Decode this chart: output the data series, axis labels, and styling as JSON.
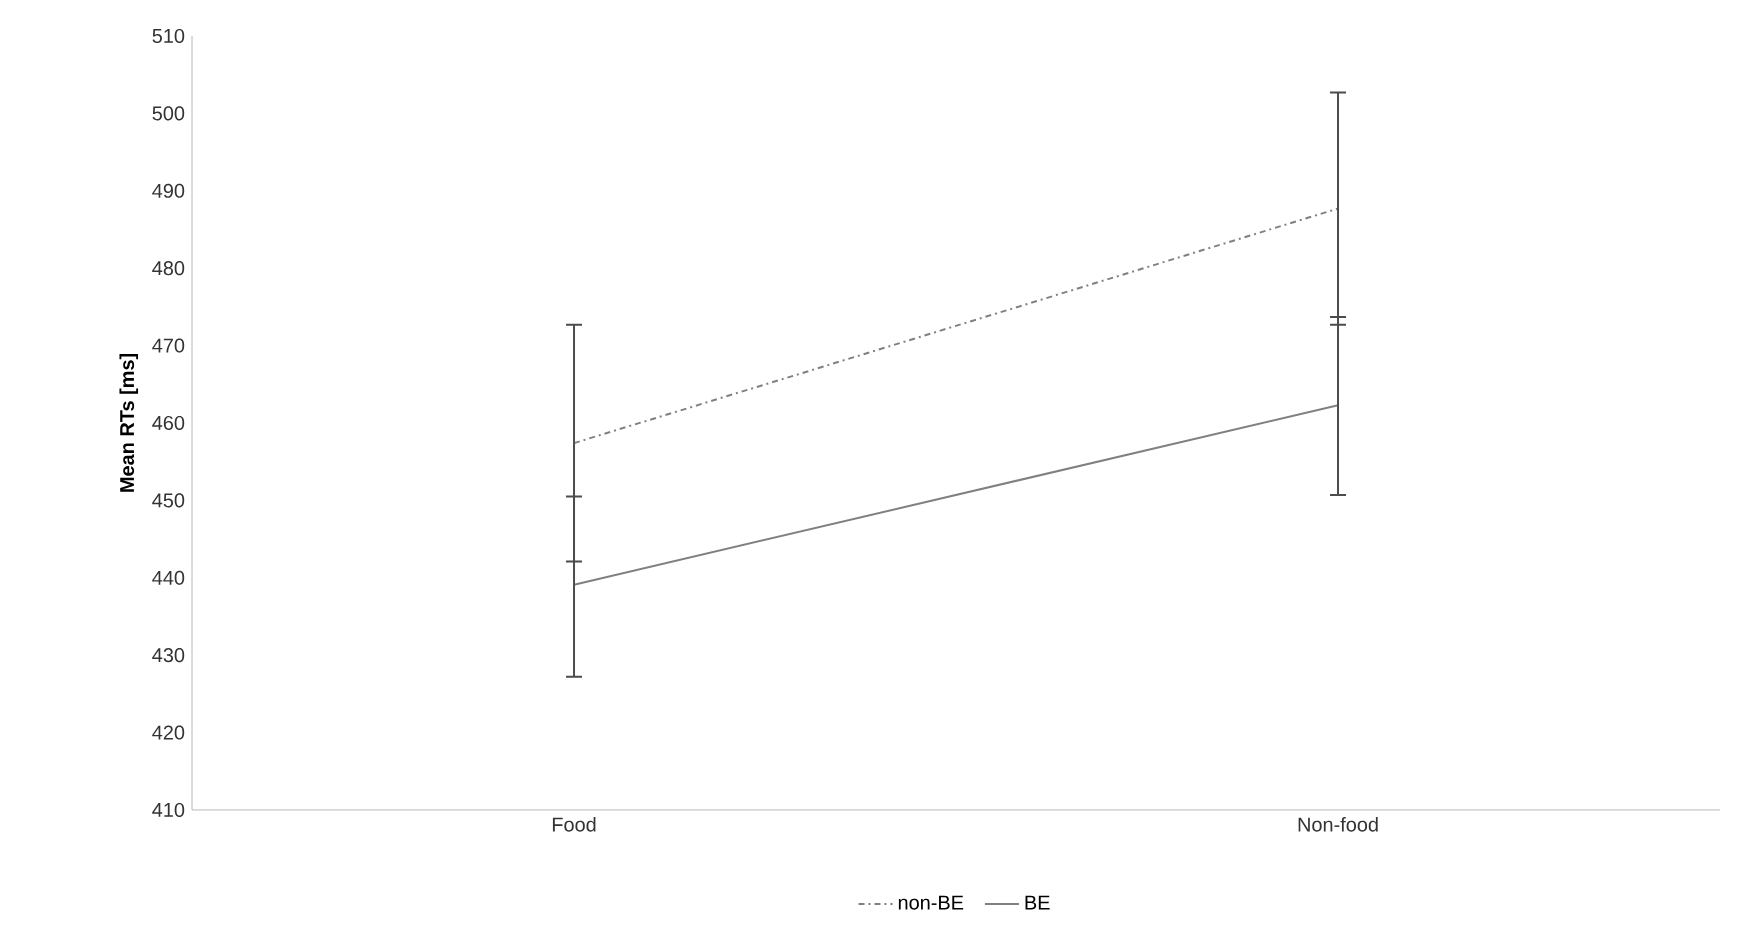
{
  "chart_data": {
    "type": "line",
    "ylabel": "Mean RTs [ms]",
    "categories": [
      "Food",
      "Non-food"
    ],
    "series": [
      {
        "name": "non-BE",
        "color": "#808080",
        "line_style": "dashdot",
        "values": [
          457.4,
          487.7
        ],
        "errors": [
          [
            442.1,
            472.7
          ],
          [
            472.7,
            502.7
          ]
        ]
      },
      {
        "name": "BE",
        "color": "#808080",
        "line_style": "solid",
        "values": [
          439.1,
          462.3
        ],
        "errors": [
          [
            427.2,
            450.5
          ],
          [
            450.7,
            473.7
          ]
        ]
      }
    ],
    "ylim": [
      410,
      510
    ],
    "yticks": [
      410,
      420,
      430,
      440,
      450,
      460,
      470,
      480,
      490,
      500,
      510
    ],
    "grid": false,
    "legend": "bottom",
    "marker": "none"
  }
}
